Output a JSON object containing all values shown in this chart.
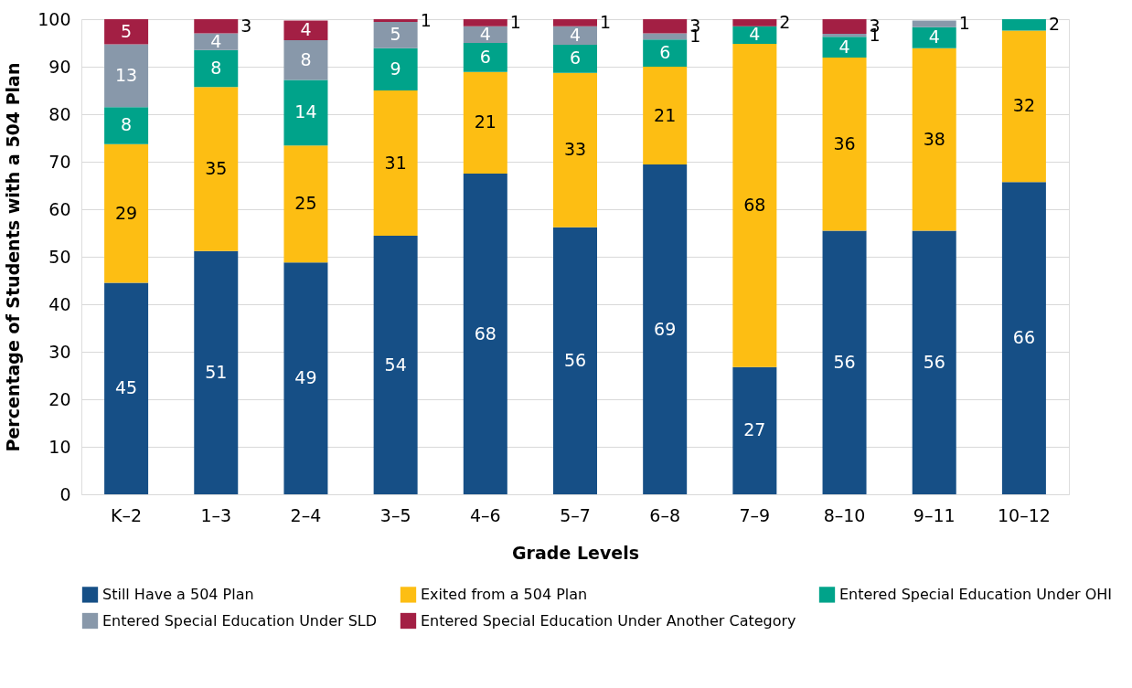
{
  "chart_data": {
    "type": "bar",
    "stacked": true,
    "xlabel": "Grade Levels",
    "ylabel": "Percentage of Students with a 504 Plan",
    "categories": [
      "K–2",
      "1–3",
      "2–4",
      "3–5",
      "4–6",
      "5–7",
      "6–8",
      "7–9",
      "8–10",
      "9–11",
      "10–12"
    ],
    "series": [
      {
        "name": "Still Have a 504 Plan",
        "color": "#164f86",
        "values": [
          44.5,
          51.2,
          48.8,
          54.4,
          67.5,
          56.2,
          69.4,
          26.8,
          55.5,
          55.5,
          65.7
        ],
        "value_labels": [
          "45",
          "51",
          "49",
          "54",
          "68",
          "56",
          "69",
          "27",
          "56",
          "56",
          "66"
        ]
      },
      {
        "name": "Exited from a 504 Plan",
        "color": "#fdbe13",
        "values": [
          29.2,
          34.5,
          24.6,
          30.6,
          21.4,
          32.5,
          20.6,
          68.0,
          36.4,
          38.4,
          31.9
        ],
        "value_labels": [
          "29",
          "35",
          "25",
          "31",
          "21",
          "33",
          "21",
          "68",
          "36",
          "38",
          "32"
        ]
      },
      {
        "name": "Entered Special Education Under OHI",
        "color": "#00a38a",
        "values": [
          7.8,
          7.8,
          13.8,
          8.9,
          6.1,
          5.9,
          5.7,
          3.7,
          4.4,
          4.4,
          2.4
        ],
        "value_labels": [
          "8",
          "8",
          "14",
          "9",
          "6",
          "6",
          "6",
          "4",
          "4",
          "4",
          "2"
        ]
      },
      {
        "name": "Entered Special Education Under SLD",
        "color": "#8898aa",
        "values": [
          13.2,
          3.5,
          8.4,
          5.5,
          3.5,
          3.9,
          1.3,
          0,
          0.6,
          1.4,
          0
        ],
        "value_labels": [
          "13",
          "4",
          "8",
          "5",
          "4",
          "4",
          "1",
          null,
          "1",
          "1",
          null
        ]
      },
      {
        "name": "Entered Special Education Under Another Category",
        "color": "#a31f44",
        "values": [
          5.3,
          3.0,
          4.1,
          0.6,
          1.5,
          1.5,
          3.0,
          1.5,
          3.1,
          0,
          0
        ],
        "value_labels": [
          "5",
          "3",
          "4",
          "1",
          "1",
          "1",
          "3",
          "2",
          "3",
          null,
          null
        ]
      }
    ],
    "ylim": [
      0,
      100
    ],
    "yticks": [
      0,
      10,
      20,
      30,
      40,
      50,
      60,
      70,
      80,
      90,
      100
    ],
    "grid": "y",
    "legend": "bottom"
  }
}
